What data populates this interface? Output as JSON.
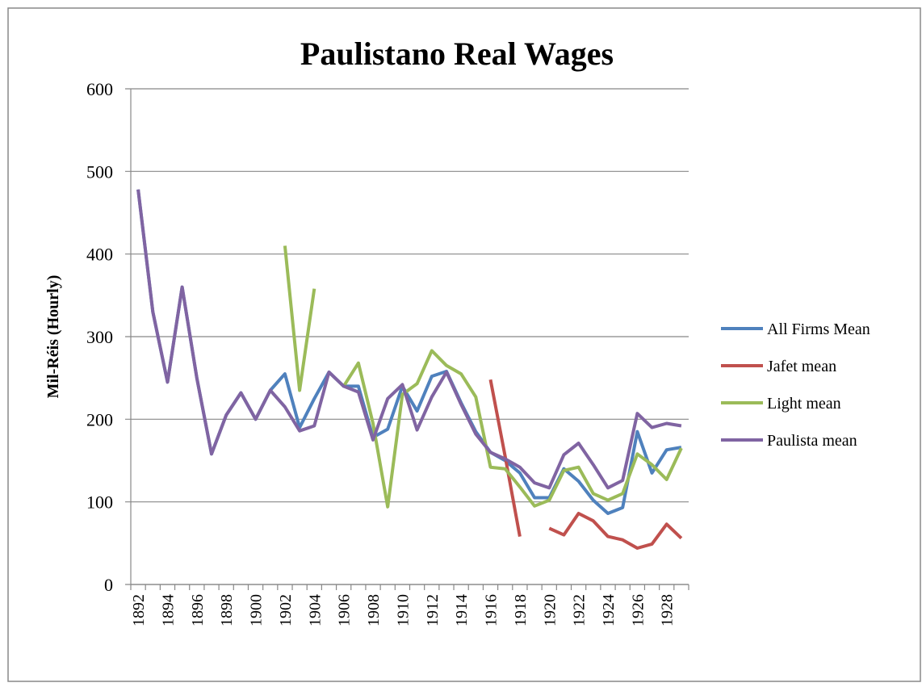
{
  "chart_data": {
    "type": "line",
    "title": "Paulistano Real Wages",
    "y_label": "Mil-Réis (Hourly)",
    "categories": [
      "1892",
      null,
      "1894",
      null,
      "1896",
      null,
      "1898",
      null,
      "1900",
      null,
      "1902",
      null,
      "1904",
      null,
      "1906",
      null,
      "1908",
      null,
      "1910",
      null,
      "1912",
      null,
      "1914",
      null,
      "1916",
      null,
      "1918",
      null,
      "1920",
      null,
      "1922",
      null,
      "1924",
      null,
      "1926",
      null,
      "1928",
      null
    ],
    "series": [
      {
        "name": "All Firms Mean",
        "color": "#4f81bd",
        "values": [
          478,
          330,
          245,
          360,
          250,
          158,
          205,
          232,
          200,
          235,
          255,
          190,
          225,
          257,
          240,
          240,
          178,
          188,
          240,
          210,
          252,
          258,
          220,
          185,
          160,
          150,
          135,
          105,
          105,
          140,
          125,
          102,
          86,
          93,
          185,
          135,
          163,
          166
        ]
      },
      {
        "name": "Jafet mean",
        "color": "#c0504d",
        "values": [
          null,
          null,
          null,
          null,
          null,
          null,
          null,
          null,
          null,
          null,
          null,
          null,
          null,
          null,
          null,
          null,
          null,
          null,
          null,
          null,
          null,
          null,
          null,
          null,
          248,
          155,
          58,
          null,
          68,
          60,
          86,
          77,
          58,
          54,
          44,
          49,
          73,
          56
        ]
      },
      {
        "name": "Light mean",
        "color": "#9bbb59",
        "values": [
          null,
          null,
          null,
          null,
          null,
          null,
          null,
          null,
          null,
          null,
          410,
          235,
          358,
          null,
          240,
          268,
          195,
          94,
          230,
          243,
          283,
          265,
          255,
          227,
          142,
          140,
          118,
          95,
          102,
          138,
          142,
          110,
          102,
          110,
          158,
          145,
          127,
          165
        ]
      },
      {
        "name": "Paulista mean",
        "color": "#8064a2",
        "values": [
          478,
          330,
          245,
          360,
          250,
          158,
          205,
          232,
          200,
          235,
          215,
          186,
          192,
          257,
          240,
          233,
          175,
          225,
          242,
          187,
          227,
          257,
          218,
          182,
          160,
          152,
          142,
          123,
          117,
          157,
          171,
          145,
          117,
          126,
          207,
          190,
          195,
          192
        ]
      }
    ],
    "ylim": [
      0,
      600
    ],
    "yticks": [
      0,
      100,
      200,
      300,
      400,
      500,
      600
    ],
    "grid": true,
    "legend": "right"
  }
}
